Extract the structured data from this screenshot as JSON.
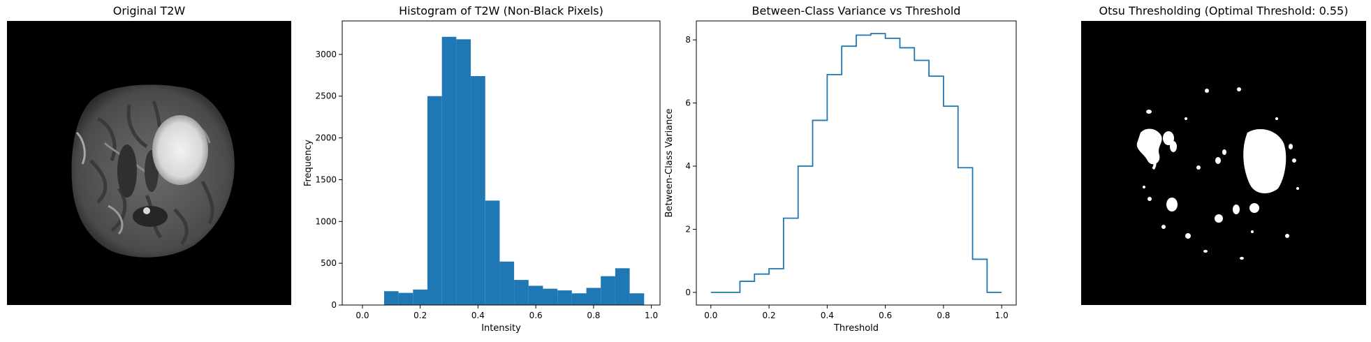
{
  "panels": {
    "original": {
      "title": "Original T2W"
    },
    "otsu": {
      "title": "Otsu Thresholding (Optimal Threshold: 0.55)"
    }
  },
  "chart_data": [
    {
      "type": "bar",
      "title": "Histogram of T2W (Non-Black Pixels)",
      "xlabel": "Intensity",
      "ylabel": "Frequency",
      "xlim": [
        -0.07,
        1.03
      ],
      "ylim": [
        0,
        3400
      ],
      "xticks": [
        "0.0",
        "0.2",
        "0.4",
        "0.6",
        "0.8",
        "1.0"
      ],
      "yticks": [
        "0",
        "500",
        "1000",
        "1500",
        "2000",
        "2500",
        "3000"
      ],
      "bin_width": 0.05,
      "bin_starts": [
        0.075,
        0.125,
        0.175,
        0.225,
        0.275,
        0.325,
        0.375,
        0.425,
        0.475,
        0.525,
        0.575,
        0.625,
        0.675,
        0.725,
        0.775,
        0.825,
        0.875,
        0.925
      ],
      "values": [
        165,
        145,
        185,
        2500,
        3210,
        3180,
        2740,
        1250,
        520,
        300,
        230,
        195,
        175,
        140,
        205,
        345,
        440,
        140
      ],
      "color": "#1f77b4"
    },
    {
      "type": "line",
      "title": "Between-Class Variance vs Threshold",
      "xlabel": "Threshold",
      "ylabel": "Between-Class Variance",
      "xlim": [
        -0.05,
        1.05
      ],
      "ylim": [
        -0.4,
        8.6
      ],
      "xticks": [
        "0.0",
        "0.2",
        "0.4",
        "0.6",
        "0.8",
        "1.0"
      ],
      "yticks": [
        "0",
        "2",
        "4",
        "6",
        "8"
      ],
      "x": [
        0.0,
        0.025,
        0.05,
        0.075,
        0.1,
        0.125,
        0.15,
        0.175,
        0.2,
        0.225,
        0.25,
        0.275,
        0.3,
        0.325,
        0.35,
        0.375,
        0.4,
        0.425,
        0.45,
        0.475,
        0.5,
        0.525,
        0.55,
        0.575,
        0.6,
        0.625,
        0.65,
        0.675,
        0.7,
        0.725,
        0.75,
        0.775,
        0.8,
        0.825,
        0.85,
        0.875,
        0.9,
        0.925,
        0.95,
        0.975,
        1.0
      ],
      "y": [
        0.0,
        0.0,
        0.0,
        0.0,
        0.35,
        0.35,
        0.58,
        0.58,
        0.75,
        0.75,
        2.35,
        2.35,
        4.0,
        4.0,
        5.45,
        5.45,
        6.9,
        6.9,
        7.8,
        7.8,
        8.15,
        8.15,
        8.2,
        8.2,
        8.05,
        8.05,
        7.75,
        7.75,
        7.35,
        7.35,
        6.85,
        6.85,
        5.9,
        5.9,
        3.95,
        3.95,
        1.05,
        1.05,
        0.0,
        0.0,
        0.0
      ],
      "color": "#1f77b4"
    }
  ]
}
